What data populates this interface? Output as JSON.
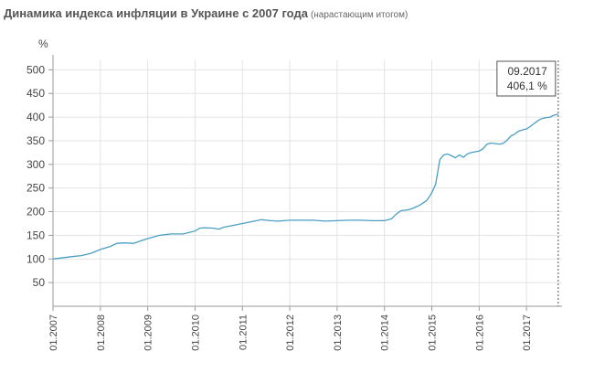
{
  "header": {
    "title": "Динамика индекса инфляции в Украине с 2007 года",
    "subtitle": "(нарастающим итогом)"
  },
  "colors": {
    "line": "#4a9ec4",
    "grid": "#e3e3e3",
    "axis": "#9a9a9a",
    "text": "#444444"
  },
  "chart_data": {
    "type": "line",
    "title": "Динамика индекса инфляции в Украине с 2007 года",
    "subtitle": "(нарастающим итогом)",
    "ylabel": "%",
    "ylim": [
      0,
      520
    ],
    "grid": true,
    "y_ticks": [
      50,
      100,
      150,
      200,
      250,
      300,
      350,
      400,
      450,
      500
    ],
    "x_ticks": [
      {
        "t": 2007.0,
        "label": "01.2007"
      },
      {
        "t": 2008.0,
        "label": "01.2008"
      },
      {
        "t": 2009.0,
        "label": "01.2009"
      },
      {
        "t": 2010.0,
        "label": "01.2010"
      },
      {
        "t": 2011.0,
        "label": "01.2011"
      },
      {
        "t": 2012.0,
        "label": "01.2012"
      },
      {
        "t": 2013.0,
        "label": "01.2013"
      },
      {
        "t": 2014.0,
        "label": "01.2014"
      },
      {
        "t": 2015.0,
        "label": "01.2015"
      },
      {
        "t": 2016.0,
        "label": "01.2016"
      },
      {
        "t": 2017.0,
        "label": "01.2017"
      }
    ],
    "xlim": [
      2007.0,
      2017.75
    ],
    "series": [
      {
        "x": [
          2007.0,
          2007.25,
          2007.4,
          2007.6,
          2007.8,
          2008.0,
          2008.2,
          2008.35,
          2008.5,
          2008.7,
          2008.9,
          2009.0,
          2009.25,
          2009.5,
          2009.75,
          2010.0,
          2010.1,
          2010.2,
          2010.4,
          2010.5,
          2010.6,
          2010.75,
          2011.0,
          2011.25,
          2011.4,
          2011.6,
          2011.75,
          2012.0,
          2012.25,
          2012.5,
          2012.75,
          2013.0,
          2013.25,
          2013.5,
          2013.75,
          2014.0,
          2014.15,
          2014.25,
          2014.35,
          2014.5,
          2014.6,
          2014.75,
          2014.9,
          2015.0,
          2015.08,
          2015.17,
          2015.25,
          2015.33,
          2015.42,
          2015.5,
          2015.58,
          2015.67,
          2015.75,
          2015.83,
          2016.0,
          2016.08,
          2016.17,
          2016.25,
          2016.33,
          2016.42,
          2016.5,
          2016.58,
          2016.67,
          2016.75,
          2016.83,
          2016.92,
          2017.0,
          2017.08,
          2017.17,
          2017.25,
          2017.33,
          2017.42,
          2017.5,
          2017.58,
          2017.67
        ],
        "y": [
          100,
          103,
          105,
          107,
          112,
          120,
          126,
          133,
          134,
          133,
          140,
          143,
          150,
          153,
          153,
          159,
          165,
          166,
          165,
          163,
          167,
          170,
          175,
          180,
          183,
          181,
          180,
          182,
          182,
          182,
          180,
          181,
          182,
          182,
          181,
          181,
          185,
          195,
          202,
          204,
          207,
          214,
          224,
          240,
          258,
          310,
          320,
          322,
          318,
          314,
          320,
          315,
          322,
          325,
          328,
          333,
          343,
          345,
          344,
          343,
          344,
          350,
          360,
          364,
          370,
          373,
          375,
          380,
          387,
          393,
          397,
          399,
          400,
          404,
          406.1
        ]
      }
    ],
    "tooltip": {
      "date": "09.2017",
      "value": "406,1 %"
    }
  }
}
